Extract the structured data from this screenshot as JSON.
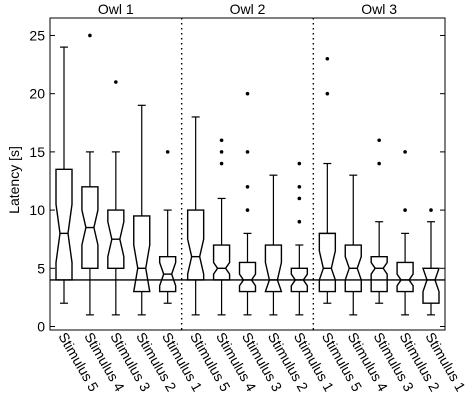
{
  "chart_data": {
    "type": "box",
    "ylabel": "Latency [s]",
    "ylim": [
      -0.3,
      26.5
    ],
    "yticks": [
      0,
      5,
      10,
      15,
      20,
      25
    ],
    "reference_line": 4,
    "grid": false,
    "legend": "none",
    "groups": [
      {
        "name": "Owl 1",
        "boxes": [
          {
            "label": "Stimulus 5",
            "min": 2,
            "q1": 4.0,
            "median": 8.0,
            "q3": 13.5,
            "max": 24.0,
            "notch": [
              5.5,
              10.5
            ],
            "outliers": []
          },
          {
            "label": "Stimulus 4",
            "min": 1,
            "q1": 5.0,
            "median": 8.5,
            "q3": 12.0,
            "max": 15.0,
            "notch": [
              7.0,
              10.0
            ],
            "outliers": [
              25
            ]
          },
          {
            "label": "Stimulus 3",
            "min": 1,
            "q1": 5.0,
            "median": 7.5,
            "q3": 10.0,
            "max": 15.0,
            "notch": [
              6.0,
              9.0
            ],
            "outliers": [
              21
            ]
          },
          {
            "label": "Stimulus 2",
            "min": 1,
            "q1": 3.0,
            "median": 5.0,
            "q3": 9.5,
            "max": 19.0,
            "notch": [
              3.0,
              7.0
            ],
            "outliers": []
          },
          {
            "label": "Stimulus 1",
            "min": 2,
            "q1": 3.0,
            "median": 4.5,
            "q3": 6.0,
            "max": 10.0,
            "notch": [
              3.5,
              5.5
            ],
            "outliers": [
              15
            ]
          }
        ]
      },
      {
        "name": "Owl 2",
        "boxes": [
          {
            "label": "Stimulus 5",
            "min": 1,
            "q1": 4.0,
            "median": 6.0,
            "q3": 10.0,
            "max": 18.0,
            "notch": [
              4.5,
              7.5
            ],
            "outliers": []
          },
          {
            "label": "Stimulus 4",
            "min": 1,
            "q1": 4.0,
            "median": 5.0,
            "q3": 7.0,
            "max": 11.0,
            "notch": [
              4.5,
              5.5
            ],
            "outliers": [
              14,
              15,
              16
            ]
          },
          {
            "label": "Stimulus 3",
            "min": 1,
            "q1": 3.0,
            "median": 4.0,
            "q3": 5.5,
            "max": 8.0,
            "notch": [
              3.5,
              4.5
            ],
            "outliers": [
              10,
              12,
              15,
              20
            ]
          },
          {
            "label": "Stimulus 2",
            "min": 1,
            "q1": 3.0,
            "median": 4.0,
            "q3": 7.0,
            "max": 13.0,
            "notch": [
              3.0,
              5.5
            ],
            "outliers": []
          },
          {
            "label": "Stimulus 1",
            "min": 1,
            "q1": 3.0,
            "median": 4.0,
            "q3": 5.0,
            "max": 7.0,
            "notch": [
              3.5,
              4.5
            ],
            "outliers": [
              9,
              11,
              12,
              14
            ]
          }
        ]
      },
      {
        "name": "Owl 3",
        "boxes": [
          {
            "label": "Stimulus 5",
            "min": 2,
            "q1": 3.0,
            "median": 5.0,
            "q3": 8.0,
            "max": 14.0,
            "notch": [
              4.0,
              6.5
            ],
            "outliers": [
              20,
              23
            ]
          },
          {
            "label": "Stimulus 4",
            "min": 1,
            "q1": 3.0,
            "median": 5.0,
            "q3": 7.0,
            "max": 13.0,
            "notch": [
              4.0,
              6.0
            ],
            "outliers": []
          },
          {
            "label": "Stimulus 3",
            "min": 2,
            "q1": 3.0,
            "median": 5.0,
            "q3": 6.0,
            "max": 9.0,
            "notch": [
              4.5,
              5.5
            ],
            "outliers": [
              14,
              16
            ]
          },
          {
            "label": "Stimulus 2",
            "min": 1,
            "q1": 3.0,
            "median": 4.0,
            "q3": 5.5,
            "max": 8.0,
            "notch": [
              3.5,
              4.5
            ],
            "outliers": [
              10,
              15
            ]
          },
          {
            "label": "Stimulus 1",
            "min": 1,
            "q1": 2.0,
            "median": 4.0,
            "q3": 5.0,
            "max": 9.0,
            "notch": [
              3.0,
              5.0
            ],
            "outliers": [
              10
            ]
          }
        ]
      }
    ]
  }
}
